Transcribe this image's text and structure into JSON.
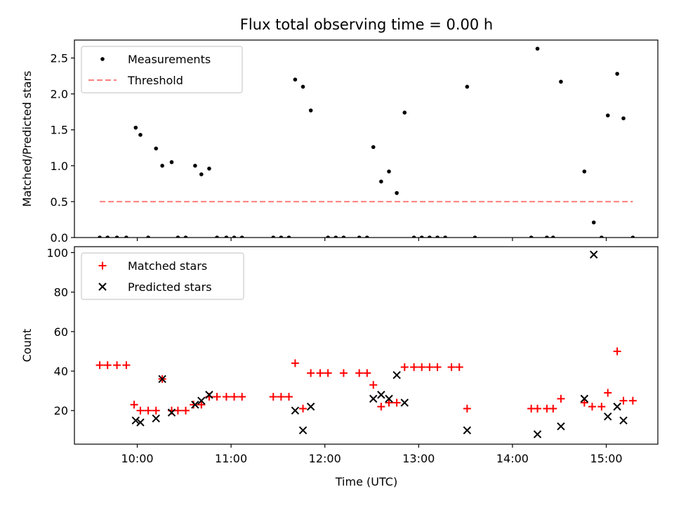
{
  "chart_data": {
    "title": "Flux total observing time = 0.00 h",
    "xlabel": "Time (UTC)",
    "x_ticks": [
      "10:00",
      "11:00",
      "12:00",
      "13:00",
      "14:00",
      "15:00"
    ],
    "x_tick_hours": [
      10,
      11,
      12,
      13,
      14,
      15
    ],
    "xlim_hours": [
      9.33,
      15.55
    ],
    "panels": [
      {
        "type": "scatter",
        "ylabel": "Matched/Predicted stars",
        "ylim": [
          0,
          2.75
        ],
        "y_ticks": [
          0.0,
          0.5,
          1.0,
          1.5,
          2.0,
          2.5
        ],
        "y_tick_labels": [
          "0.0",
          "0.5",
          "1.0",
          "1.5",
          "2.0",
          "2.5"
        ],
        "legend_position": "upper-left",
        "series": [
          {
            "name": "Measurements",
            "marker": "dot",
            "color": "#000000",
            "points": [
              [
                "09:36",
                0
              ],
              [
                "09:41",
                0
              ],
              [
                "09:47",
                0
              ],
              [
                "09:53",
                0
              ],
              [
                "09:59",
                1.53
              ],
              [
                "10:02",
                1.43
              ],
              [
                "10:07",
                0
              ],
              [
                "10:12",
                1.24
              ],
              [
                "10:16",
                1.0
              ],
              [
                "10:22",
                1.05
              ],
              [
                "10:26",
                0
              ],
              [
                "10:31",
                0
              ],
              [
                "10:37",
                1.0
              ],
              [
                "10:41",
                0.88
              ],
              [
                "10:46",
                0.96
              ],
              [
                "10:51",
                0
              ],
              [
                "10:57",
                0
              ],
              [
                "11:02",
                0
              ],
              [
                "11:07",
                0
              ],
              [
                "11:27",
                0
              ],
              [
                "11:32",
                0
              ],
              [
                "11:37",
                0
              ],
              [
                "11:41",
                2.2
              ],
              [
                "11:46",
                2.1
              ],
              [
                "11:51",
                1.77
              ],
              [
                "12:02",
                0
              ],
              [
                "12:07",
                0
              ],
              [
                "12:12",
                0
              ],
              [
                "12:22",
                0
              ],
              [
                "12:27",
                0
              ],
              [
                "12:31",
                1.26
              ],
              [
                "12:36",
                0.78
              ],
              [
                "12:41",
                0.92
              ],
              [
                "12:46",
                0.62
              ],
              [
                "12:51",
                1.74
              ],
              [
                "12:57",
                0
              ],
              [
                "13:02",
                0
              ],
              [
                "13:07",
                0
              ],
              [
                "13:12",
                0
              ],
              [
                "13:17",
                0
              ],
              [
                "13:31",
                2.1
              ],
              [
                "13:36",
                0
              ],
              [
                "14:12",
                0
              ],
              [
                "14:16",
                2.63
              ],
              [
                "14:22",
                0
              ],
              [
                "14:26",
                0
              ],
              [
                "14:31",
                2.17
              ],
              [
                "14:46",
                0.92
              ],
              [
                "14:52",
                0.21
              ],
              [
                "14:57",
                0
              ],
              [
                "15:01",
                1.7
              ],
              [
                "15:07",
                2.28
              ],
              [
                "15:11",
                1.66
              ],
              [
                "15:17",
                0
              ]
            ]
          },
          {
            "name": "Threshold",
            "marker": "dashed-line",
            "color": "#ff7f7f",
            "y": 0.5,
            "x_range": [
              "09:36",
              "15:17"
            ]
          }
        ]
      },
      {
        "type": "scatter",
        "ylabel": "Count",
        "ylim": [
          3,
          103
        ],
        "y_ticks": [
          20,
          40,
          60,
          80,
          100
        ],
        "y_tick_labels": [
          "20",
          "40",
          "60",
          "80",
          "100"
        ],
        "legend_position": "upper-left",
        "series": [
          {
            "name": "Matched stars",
            "marker": "plus",
            "color": "#ff0000",
            "points": [
              [
                "09:36",
                43
              ],
              [
                "09:41",
                43
              ],
              [
                "09:47",
                43
              ],
              [
                "09:53",
                43
              ],
              [
                "09:58",
                23
              ],
              [
                "10:02",
                20
              ],
              [
                "10:07",
                20
              ],
              [
                "10:12",
                20
              ],
              [
                "10:16",
                36
              ],
              [
                "10:22",
                20
              ],
              [
                "10:26",
                20
              ],
              [
                "10:31",
                20
              ],
              [
                "10:36",
                23
              ],
              [
                "10:41",
                23
              ],
              [
                "10:46",
                27
              ],
              [
                "10:51",
                27
              ],
              [
                "10:57",
                27
              ],
              [
                "11:02",
                27
              ],
              [
                "11:07",
                27
              ],
              [
                "11:27",
                27
              ],
              [
                "11:32",
                27
              ],
              [
                "11:37",
                27
              ],
              [
                "11:41",
                44
              ],
              [
                "11:46",
                21
              ],
              [
                "11:51",
                39
              ],
              [
                "11:57",
                39
              ],
              [
                "12:02",
                39
              ],
              [
                "12:12",
                39
              ],
              [
                "12:22",
                39
              ],
              [
                "12:27",
                39
              ],
              [
                "12:31",
                33
              ],
              [
                "12:36",
                22
              ],
              [
                "12:41",
                24
              ],
              [
                "12:46",
                24
              ],
              [
                "12:51",
                42
              ],
              [
                "12:57",
                42
              ],
              [
                "13:02",
                42
              ],
              [
                "13:07",
                42
              ],
              [
                "13:12",
                42
              ],
              [
                "13:21",
                42
              ],
              [
                "13:26",
                42
              ],
              [
                "13:31",
                21
              ],
              [
                "14:12",
                21
              ],
              [
                "14:16",
                21
              ],
              [
                "14:22",
                21
              ],
              [
                "14:26",
                21
              ],
              [
                "14:31",
                26
              ],
              [
                "14:46",
                24
              ],
              [
                "14:51",
                22
              ],
              [
                "14:57",
                22
              ],
              [
                "15:01",
                29
              ],
              [
                "15:07",
                50
              ],
              [
                "15:11",
                25
              ],
              [
                "15:17",
                25
              ]
            ]
          },
          {
            "name": "Predicted stars",
            "marker": "x",
            "color": "#000000",
            "points": [
              [
                "09:59",
                15
              ],
              [
                "10:02",
                14
              ],
              [
                "10:12",
                16
              ],
              [
                "10:16",
                36
              ],
              [
                "10:22",
                19
              ],
              [
                "10:37",
                23
              ],
              [
                "10:41",
                25
              ],
              [
                "10:46",
                28
              ],
              [
                "11:41",
                20
              ],
              [
                "11:46",
                10
              ],
              [
                "11:51",
                22
              ],
              [
                "12:31",
                26
              ],
              [
                "12:36",
                28
              ],
              [
                "12:41",
                26
              ],
              [
                "12:46",
                38
              ],
              [
                "12:51",
                24
              ],
              [
                "13:31",
                10
              ],
              [
                "14:16",
                8
              ],
              [
                "14:31",
                12
              ],
              [
                "14:46",
                26
              ],
              [
                "14:52",
                99
              ],
              [
                "15:01",
                17
              ],
              [
                "15:07",
                22
              ],
              [
                "15:11",
                15
              ]
            ]
          }
        ]
      }
    ]
  }
}
